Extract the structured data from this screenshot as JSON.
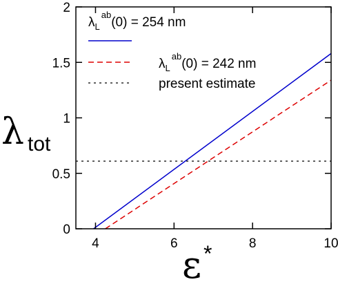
{
  "chart_data": {
    "type": "line",
    "xlabel": {
      "symbol": "ε",
      "superscript": "*"
    },
    "ylabel": {
      "symbol": "λ",
      "subscript": "tot"
    },
    "xlim": [
      3.5,
      10
    ],
    "ylim": [
      0,
      2
    ],
    "xticks": [
      {
        "value": 4,
        "label": "4"
      },
      {
        "value": 6,
        "label": "6"
      },
      {
        "value": 8,
        "label": "8"
      },
      {
        "value": 10,
        "label": "10"
      }
    ],
    "yticks": [
      {
        "value": 0,
        "label": "0"
      },
      {
        "value": 0.5,
        "label": "0.5"
      },
      {
        "value": 1,
        "label": "1"
      },
      {
        "value": 1.5,
        "label": "1.5"
      },
      {
        "value": 2,
        "label": "2"
      }
    ],
    "grid": false,
    "legend_position": "top-left",
    "series": [
      {
        "legend": {
          "prefix": "λ",
          "sub": "L",
          "sup": "ab",
          "suffix": "(0) =  254 nm"
        },
        "color": "#0000cc",
        "style": "solid",
        "x": [
          3.95,
          10
        ],
        "y": [
          0,
          1.58
        ]
      },
      {
        "legend": {
          "prefix": "λ",
          "sub": "L",
          "sup": "ab",
          "suffix": "(0) = 242 nm"
        },
        "color": "#dd0000",
        "style": "dashed",
        "x": [
          4.25,
          10
        ],
        "y": [
          0,
          1.34
        ]
      },
      {
        "legend": {
          "text": "present estimate"
        },
        "color": "#000000",
        "style": "dotted",
        "x": [
          3.5,
          10
        ],
        "y": [
          0.61,
          0.61
        ]
      }
    ]
  }
}
